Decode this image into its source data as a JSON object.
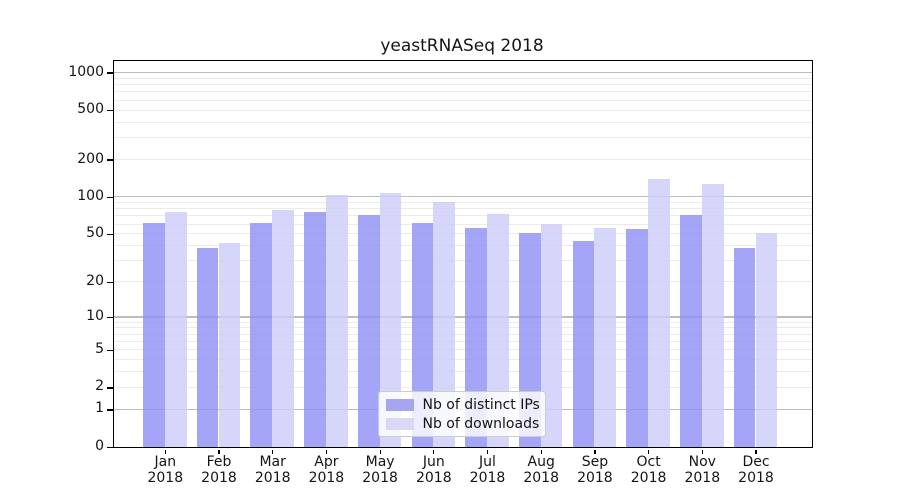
{
  "chart_data": {
    "type": "bar",
    "title": "yeastRNASeq 2018",
    "categories": [
      "Jan",
      "Feb",
      "Mar",
      "Apr",
      "May",
      "Jun",
      "Jul",
      "Aug",
      "Sep",
      "Oct",
      "Nov",
      "Dec"
    ],
    "x_sub_label": "2018",
    "series": [
      {
        "name": "Nb of distinct IPs",
        "color": "#a6a6f0",
        "bar_fill": "rgba(145,145,245,0.82)",
        "values": [
          61,
          38,
          61,
          75,
          71,
          61,
          56,
          51,
          44,
          55,
          71,
          38
        ]
      },
      {
        "name": "Nb of downloads",
        "color": "#d8d8f9",
        "bar_fill": "rgba(205,205,250,0.82)",
        "values": [
          75,
          42,
          79,
          103,
          107,
          91,
          72,
          60,
          56,
          139,
          126,
          51
        ]
      }
    ],
    "yscale": "log1p",
    "ylabel": "",
    "xlabel": "",
    "y_ticks": [
      0,
      1,
      2,
      5,
      10,
      20,
      50,
      100,
      200,
      500,
      1000
    ],
    "y_major_gridlines": [
      1,
      10,
      100,
      1000
    ],
    "y_minor_gridlines": [
      2,
      3,
      4,
      5,
      6,
      7,
      8,
      9,
      20,
      30,
      40,
      50,
      60,
      70,
      80,
      90,
      200,
      300,
      400,
      500,
      600,
      700,
      800,
      900
    ],
    "ylim": [
      0,
      1070
    ],
    "grid": "horizontal",
    "legend_position": "lower center inside",
    "colors": {
      "major_grid": "#bdbdbd",
      "minor_grid": "#ebebeb",
      "axis": "#000000",
      "text": "#151515"
    }
  }
}
